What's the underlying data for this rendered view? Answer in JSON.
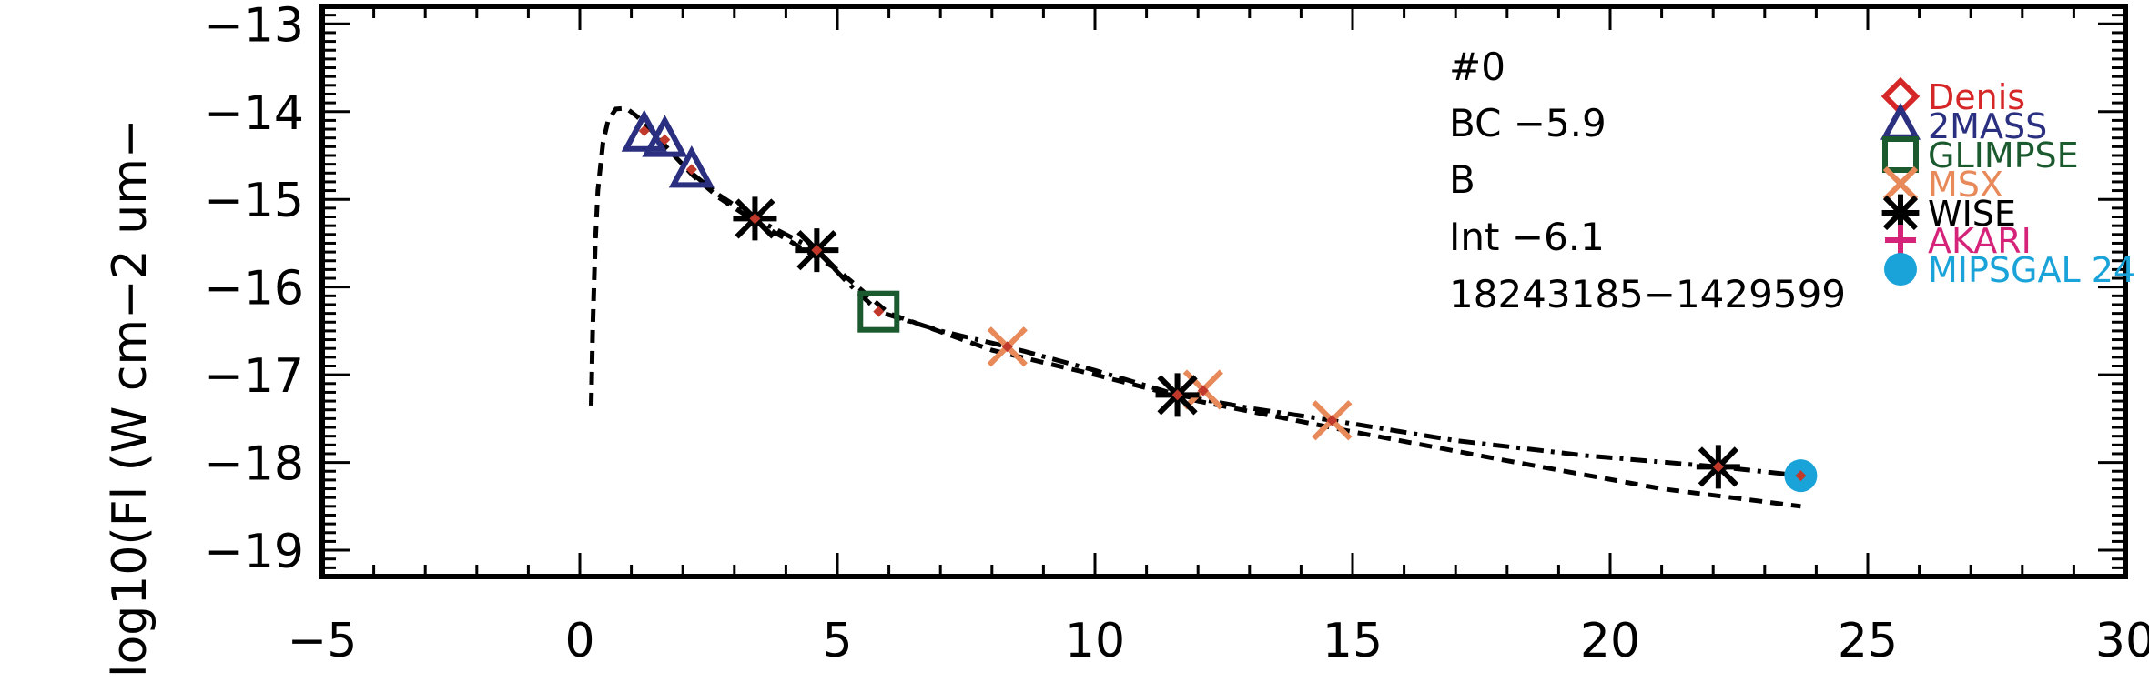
{
  "chart_data": {
    "type": "scatter",
    "title": "",
    "xlabel": "",
    "ylabel": "log10(Fl (W cm−2 um−",
    "xlim": [
      -5,
      30
    ],
    "ylim": [
      -19.3,
      -12.8
    ],
    "x_ticks": [
      -5,
      0,
      5,
      10,
      15,
      20,
      25,
      30
    ],
    "x_tick_labels": [
      "−5",
      "0",
      "5",
      "10",
      "15",
      "20",
      "25",
      "30"
    ],
    "y_ticks": [
      -13,
      -14,
      -15,
      -16,
      -17,
      -18,
      -19
    ],
    "y_tick_labels": [
      "−13",
      "−14",
      "−15",
      "−16",
      "−17",
      "−18",
      "−19"
    ],
    "grid": false,
    "legend_position": "top-right",
    "annotations": [
      "#0",
      "BC −5.9",
      "B",
      "Int −6.1",
      "18243185−1429599"
    ],
    "series": [
      {
        "name": "Denis",
        "marker": "diamond",
        "color": "#d62728",
        "x": [],
        "y": []
      },
      {
        "name": "2MASS",
        "marker": "triangle",
        "color": "#2b2f80",
        "x": [
          1.25,
          1.65,
          2.17
        ],
        "y": [
          -14.27,
          -14.33,
          -14.68
        ]
      },
      {
        "name": "GLIMPSE",
        "marker": "square",
        "color": "#1a5a2e",
        "x": [
          5.8
        ],
        "y": [
          -16.28
        ]
      },
      {
        "name": "MSX",
        "marker": "x",
        "color": "#e8895a",
        "x": [
          8.3,
          12.1,
          14.6
        ],
        "y": [
          -16.68,
          -17.17,
          -17.52
        ]
      },
      {
        "name": "WISE",
        "marker": "asterisk",
        "color": "#000000",
        "x": [
          3.4,
          4.6,
          11.6,
          22.1
        ],
        "y": [
          -15.22,
          -15.58,
          -17.23,
          -18.05
        ]
      },
      {
        "name": "AKARI",
        "marker": "plus",
        "color": "#d6237a",
        "x": [],
        "y": []
      },
      {
        "name": "MIPSGAL 24",
        "marker": "circle",
        "color": "#1aa3d9",
        "x": [
          23.7
        ],
        "y": [
          -18.15
        ]
      }
    ],
    "model_points": {
      "x": [
        1.25,
        1.65,
        2.17,
        3.4,
        4.6,
        5.8,
        8.3,
        11.6,
        12.1,
        14.6,
        22.1,
        23.7
      ],
      "y": [
        -14.22,
        -14.32,
        -14.66,
        -15.22,
        -15.58,
        -16.28,
        -16.68,
        -17.23,
        -17.18,
        -17.52,
        -18.05,
        -18.15
      ],
      "color": "#c0392b"
    },
    "curves": [
      {
        "style": "dashed",
        "x": [
          0.22,
          0.25,
          0.3,
          0.35,
          0.45,
          0.55,
          0.7,
          0.9,
          1.1,
          1.4,
          1.8,
          2.2,
          2.7,
          3.4,
          4.0,
          5.0,
          6.0,
          8.0,
          10.0,
          12.0,
          15.0,
          18.0,
          21.0,
          23.7
        ],
        "y": [
          -17.35,
          -16.5,
          -15.5,
          -14.9,
          -14.35,
          -14.1,
          -13.97,
          -13.96,
          -14.05,
          -14.22,
          -14.48,
          -14.73,
          -14.98,
          -15.25,
          -15.45,
          -15.8,
          -16.3,
          -16.72,
          -17.0,
          -17.3,
          -17.65,
          -17.98,
          -18.3,
          -18.5
        ]
      },
      {
        "style": "dash-dot",
        "x": [
          2.17,
          2.7,
          3.4,
          4.0,
          4.6,
          5.2,
          5.8,
          7.0,
          8.3,
          10.0,
          11.6,
          13.0,
          14.6,
          17.0,
          19.5,
          22.1,
          23.7
        ],
        "y": [
          -14.7,
          -14.95,
          -15.22,
          -15.4,
          -15.58,
          -15.95,
          -16.28,
          -16.5,
          -16.68,
          -16.95,
          -17.23,
          -17.38,
          -17.52,
          -17.75,
          -17.92,
          -18.05,
          -18.15
        ]
      }
    ]
  }
}
